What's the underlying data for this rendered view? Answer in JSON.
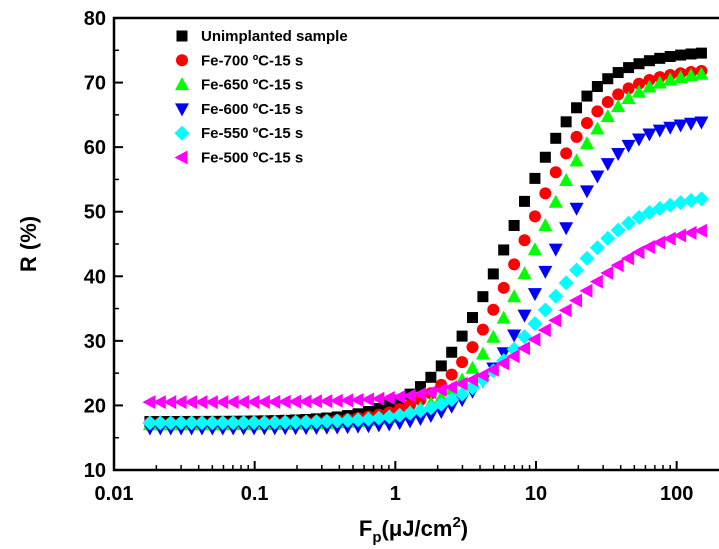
{
  "chart_data": {
    "type": "scatter",
    "xscale": "log",
    "xlim": [
      0.01,
      200
    ],
    "ylim": [
      10,
      80
    ],
    "xticks": [
      0.01,
      0.1,
      1,
      10,
      100
    ],
    "xtick_labels": [
      "0.01",
      "0.1",
      "1",
      "10",
      "100"
    ],
    "yticks": [
      10,
      20,
      30,
      40,
      50,
      60,
      70,
      80
    ],
    "ytick_labels": [
      "10",
      "20",
      "30",
      "40",
      "50",
      "60",
      "70",
      "80"
    ],
    "ylabel": "R (%)",
    "xlabel": {
      "main": "F",
      "sub": "p",
      "unit": "(μJ/cm",
      "sup": "2",
      "close": ")"
    },
    "legend_position": "top-left",
    "grid": false,
    "x_start": 0.018,
    "x_end": 150,
    "n_points": 54,
    "series": [
      {
        "name": "Unimplanted sample",
        "marker": "square",
        "color": "#000000",
        "floor": 17.5,
        "ceiling": 75.0,
        "x_center": 6.5,
        "slope": 1.55
      },
      {
        "name": "Fe-700 ºC-15 s",
        "marker": "circle",
        "color": "#ff0000",
        "floor": 17.3,
        "ceiling": 72.3,
        "x_center": 8.0,
        "slope": 1.6
      },
      {
        "name": "Fe-650 ºC-15 s",
        "marker": "triangle-up",
        "color": "#00ff00",
        "floor": 17.0,
        "ceiling": 72.0,
        "x_center": 10.0,
        "slope": 1.6
      },
      {
        "name": "Fe-600 ºC-15 s",
        "marker": "triangle-down",
        "color": "#0000ff",
        "floor": 16.5,
        "ceiling": 64.5,
        "x_center": 11.5,
        "slope": 1.7
      },
      {
        "name": "Fe-550 ºC-15 s",
        "marker": "diamond",
        "color": "#00ffff",
        "floor": 17.3,
        "ceiling": 53.0,
        "x_center": 12.0,
        "slope": 1.4
      },
      {
        "name": "Fe-500 ºC-15 s",
        "marker": "triangle-left",
        "color": "#ff00ff",
        "floor": 20.5,
        "ceiling": 48.5,
        "x_center": 16.0,
        "slope": 1.3
      }
    ]
  }
}
